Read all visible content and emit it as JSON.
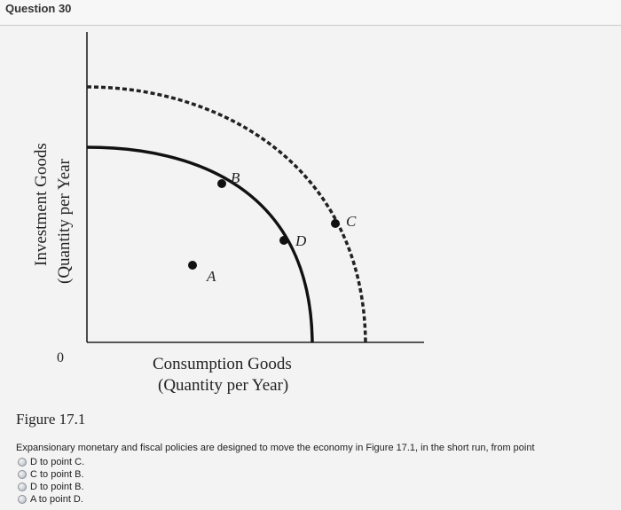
{
  "question": {
    "title": "Question 30"
  },
  "figure": {
    "y_axis_label_line1": "Investment Goods",
    "y_axis_label_line2": "(Quantity per Year",
    "x_axis_label_line1": "Consumption Goods",
    "x_axis_label_line2": "(Quantity per Year)",
    "origin_label": "0",
    "points": {
      "A": "A",
      "B": "B",
      "C": "C",
      "D": "D"
    },
    "caption": "Figure 17.1"
  },
  "prompt": "Expansionary monetary and fiscal policies are designed to move the economy in Figure 17.1, in the short run, from point",
  "answers": [
    {
      "label": "D to point C."
    },
    {
      "label": "C to point B."
    },
    {
      "label": "D to point B."
    },
    {
      "label": "A to point D."
    }
  ]
}
